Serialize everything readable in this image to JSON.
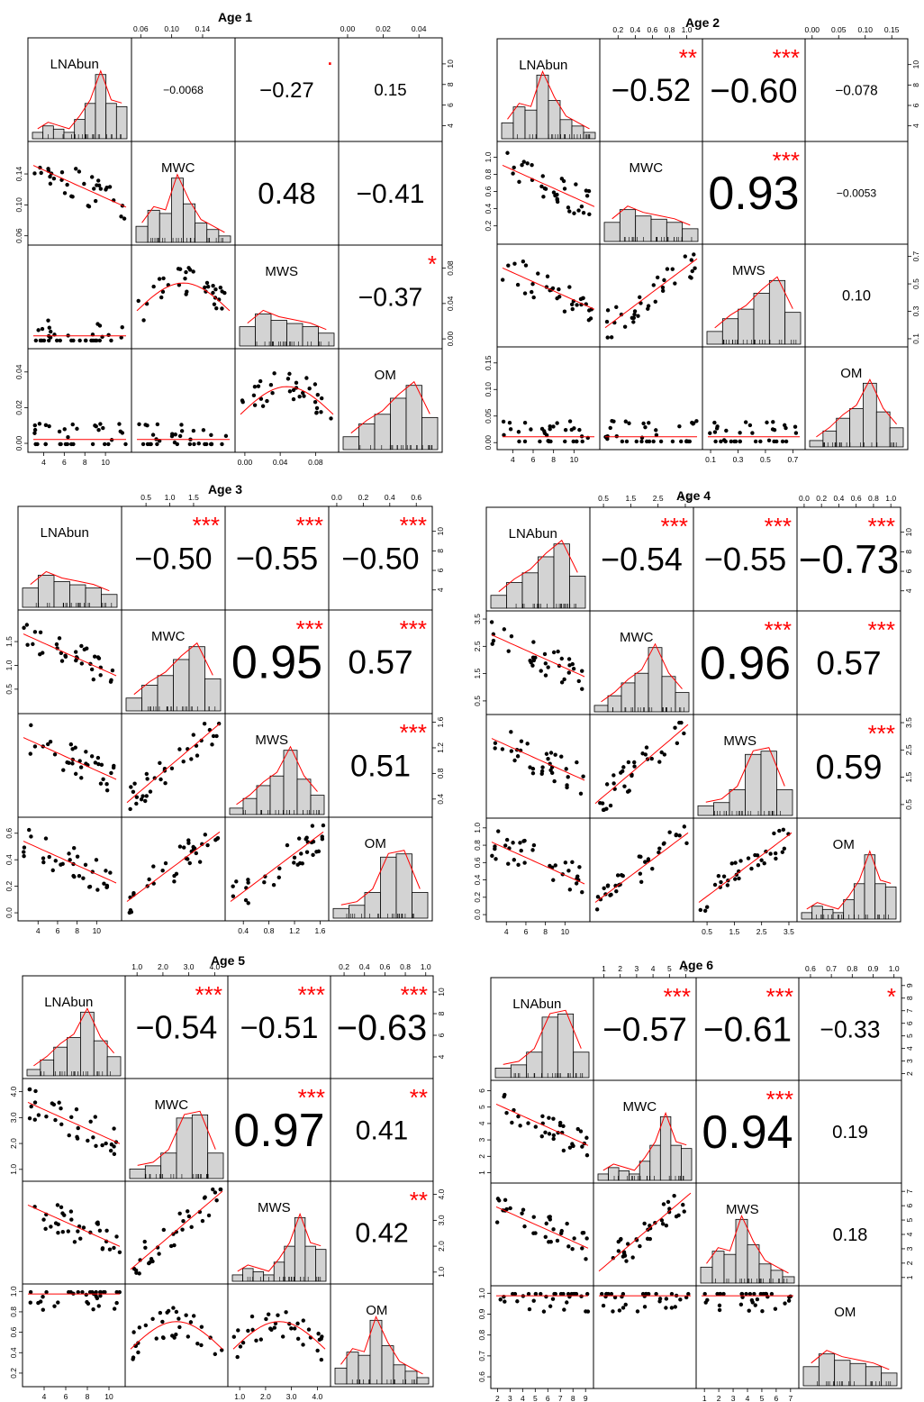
{
  "chart_data": [
    {
      "type": "scatter-matrix",
      "title": "Age 1",
      "variables": [
        "LNAbun",
        "MWC",
        "MWS",
        "OM"
      ],
      "ranges": [
        [
          3,
          12
        ],
        [
          0.055,
          0.175
        ],
        [
          -0.005,
          0.1
        ],
        [
          -0.002,
          0.05
        ]
      ],
      "ticks": [
        [
          4,
          6,
          8,
          10
        ],
        [
          0.06,
          0.1,
          0.14
        ],
        [
          0,
          0.04,
          0.08
        ],
        [
          0,
          0.02,
          0.04
        ]
      ],
      "tick_labels": [
        [
          "4",
          "6",
          "8",
          "10"
        ],
        [
          "0.06",
          "0.10",
          "0.14"
        ],
        [
          "0.00",
          "0.04",
          "0.08"
        ],
        [
          "0.00",
          "0.02",
          "0.04"
        ]
      ],
      "correlations": [
        {
          "pair": "LNAbun-MWC",
          "r": "-0.0068",
          "stars": ""
        },
        {
          "pair": "LNAbun-MWS",
          "r": "-0.27",
          "stars": "."
        },
        {
          "pair": "LNAbun-OM",
          "r": "0.15",
          "stars": ""
        },
        {
          "pair": "MWC-MWS",
          "r": "0.48",
          "stars": ""
        },
        {
          "pair": "MWC-OM",
          "r": "-0.41",
          "stars": ""
        },
        {
          "pair": "MWS-OM",
          "r": "-0.37",
          "stars": "*"
        }
      ]
    },
    {
      "type": "scatter-matrix",
      "title": "Age 2",
      "variables": [
        "LNAbun",
        "MWC",
        "MWS",
        "OM"
      ],
      "ranges": [
        [
          3,
          12
        ],
        [
          0.05,
          1.12
        ],
        [
          0.08,
          0.75
        ],
        [
          -0.003,
          0.17
        ]
      ],
      "ticks": [
        [
          4,
          6,
          8,
          10
        ],
        [
          0.2,
          0.4,
          0.6,
          0.8,
          1.0
        ],
        [
          0.1,
          0.3,
          0.5,
          0.7
        ],
        [
          0,
          0.05,
          0.1,
          0.15
        ]
      ],
      "tick_labels": [
        [
          "4",
          "6",
          "8",
          "10"
        ],
        [
          "0.2",
          "0.4",
          "0.6",
          "0.8",
          "1.0"
        ],
        [
          "0.1",
          "0.3",
          "0.5",
          "0.7"
        ],
        [
          "0.00",
          "0.05",
          "0.10",
          "0.15"
        ]
      ],
      "correlations": [
        {
          "pair": "LNAbun-MWC",
          "r": "-0.52",
          "stars": "**"
        },
        {
          "pair": "LNAbun-MWS",
          "r": "-0.60",
          "stars": "***"
        },
        {
          "pair": "LNAbun-OM",
          "r": "-0.078",
          "stars": ""
        },
        {
          "pair": "MWC-MWS",
          "r": "0.93",
          "stars": "***"
        },
        {
          "pair": "MWC-OM",
          "r": "-0.0053",
          "stars": ""
        },
        {
          "pair": "MWS-OM",
          "r": "0.10",
          "stars": ""
        }
      ]
    },
    {
      "type": "scatter-matrix",
      "title": "Age 3",
      "variables": [
        "LNAbun",
        "MWC",
        "MWS",
        "OM"
      ],
      "ranges": [
        [
          2.5,
          12
        ],
        [
          0.1,
          2.05
        ],
        [
          0.2,
          1.65
        ],
        [
          -0.02,
          0.68
        ]
      ],
      "ticks": [
        [
          4,
          6,
          8,
          10
        ],
        [
          0.5,
          1.0,
          1.5
        ],
        [
          0.4,
          0.8,
          1.2,
          1.6
        ],
        [
          0,
          0.2,
          0.4,
          0.6
        ]
      ],
      "tick_labels": [
        [
          "4",
          "6",
          "8",
          "10"
        ],
        [
          "0.5",
          "1.0",
          "1.5"
        ],
        [
          "0.4",
          "0.8",
          "1.2",
          "1.6"
        ],
        [
          "0.0",
          "0.2",
          "0.4",
          "0.6"
        ]
      ],
      "correlations": [
        {
          "pair": "LNAbun-MWC",
          "r": "-0.50",
          "stars": "***"
        },
        {
          "pair": "LNAbun-MWS",
          "r": "-0.55",
          "stars": "***"
        },
        {
          "pair": "LNAbun-OM",
          "r": "-0.50",
          "stars": "***"
        },
        {
          "pair": "MWC-MWS",
          "r": "0.95",
          "stars": "***"
        },
        {
          "pair": "MWC-OM",
          "r": "0.57",
          "stars": "***"
        },
        {
          "pair": "MWS-OM",
          "r": "0.51",
          "stars": "***"
        }
      ]
    },
    {
      "type": "scatter-matrix",
      "title": "Age 4",
      "variables": [
        "LNAbun",
        "MWC",
        "MWS",
        "OM"
      ],
      "ranges": [
        [
          2.5,
          12
        ],
        [
          0.2,
          3.6
        ],
        [
          0.2,
          3.6
        ],
        [
          -0.02,
          1.05
        ]
      ],
      "ticks": [
        [
          4,
          6,
          8,
          10
        ],
        [
          0.5,
          1.5,
          2.5,
          3.5
        ],
        [
          0.5,
          1.5,
          2.5,
          3.5
        ],
        [
          0,
          0.2,
          0.4,
          0.6,
          0.8,
          1.0
        ]
      ],
      "tick_labels": [
        [
          "4",
          "6",
          "8",
          "10"
        ],
        [
          "0.5",
          "1.5",
          "2.5",
          "3.5"
        ],
        [
          "0.5",
          "1.5",
          "2.5",
          "3.5"
        ],
        [
          "0.0",
          "0.2",
          "0.4",
          "0.6",
          "0.8",
          "1.0"
        ]
      ],
      "correlations": [
        {
          "pair": "LNAbun-MWC",
          "r": "-0.54",
          "stars": "***"
        },
        {
          "pair": "LNAbun-MWS",
          "r": "-0.55",
          "stars": "***"
        },
        {
          "pair": "LNAbun-OM",
          "r": "-0.73",
          "stars": "***"
        },
        {
          "pair": "MWC-MWS",
          "r": "0.96",
          "stars": "***"
        },
        {
          "pair": "MWC-OM",
          "r": "0.57",
          "stars": "***"
        },
        {
          "pair": "MWS-OM",
          "r": "0.59",
          "stars": "***"
        }
      ]
    },
    {
      "type": "scatter-matrix",
      "title": "Age 5",
      "variables": [
        "LNAbun",
        "MWC",
        "MWS",
        "OM"
      ],
      "ranges": [
        [
          2.5,
          11
        ],
        [
          0.75,
          4.3
        ],
        [
          0.75,
          4.3
        ],
        [
          0.12,
          1.02
        ]
      ],
      "ticks": [
        [
          4,
          6,
          8,
          10
        ],
        [
          1.0,
          2.0,
          3.0,
          4.0
        ],
        [
          1.0,
          2.0,
          3.0,
          4.0
        ],
        [
          0.2,
          0.4,
          0.6,
          0.8,
          1.0
        ]
      ],
      "tick_labels": [
        [
          "4",
          "6",
          "8",
          "10"
        ],
        [
          "1.0",
          "2.0",
          "3.0",
          "4.0"
        ],
        [
          "1.0",
          "2.0",
          "3.0",
          "4.0"
        ],
        [
          "0.2",
          "0.4",
          "0.6",
          "0.8",
          "1.0"
        ]
      ],
      "correlations": [
        {
          "pair": "LNAbun-MWC",
          "r": "-0.54",
          "stars": "***"
        },
        {
          "pair": "LNAbun-MWS",
          "r": "-0.51",
          "stars": "***"
        },
        {
          "pair": "LNAbun-OM",
          "r": "-0.63",
          "stars": "***"
        },
        {
          "pair": "MWC-MWS",
          "r": "0.97",
          "stars": "***"
        },
        {
          "pair": "MWC-OM",
          "r": "0.41",
          "stars": "**"
        },
        {
          "pair": "MWS-OM",
          "r": "0.42",
          "stars": "**"
        }
      ]
    },
    {
      "type": "scatter-matrix",
      "title": "Age 6",
      "variables": [
        "LNAbun",
        "MWC",
        "MWS",
        "OM"
      ],
      "ranges": [
        [
          1.9,
          9.2
        ],
        [
          0.7,
          6.3
        ],
        [
          0.8,
          7.2
        ],
        [
          0.57,
          1.01
        ]
      ],
      "ticks": [
        [
          2,
          3,
          4,
          5,
          6,
          7,
          8,
          9
        ],
        [
          1,
          2,
          3,
          4,
          5,
          6
        ],
        [
          1,
          2,
          3,
          4,
          5,
          6,
          7
        ],
        [
          0.6,
          0.7,
          0.8,
          0.9,
          1.0
        ]
      ],
      "tick_labels": [
        [
          "2",
          "3",
          "4",
          "5",
          "6",
          "7",
          "8",
          "9"
        ],
        [
          "1",
          "2",
          "3",
          "4",
          "5",
          "6"
        ],
        [
          "1",
          "2",
          "3",
          "4",
          "5",
          "6",
          "7"
        ],
        [
          "0.6",
          "0.7",
          "0.8",
          "0.9",
          "1.0"
        ]
      ],
      "correlations": [
        {
          "pair": "LNAbun-MWC",
          "r": "-0.57",
          "stars": "***"
        },
        {
          "pair": "LNAbun-MWS",
          "r": "-0.61",
          "stars": "***"
        },
        {
          "pair": "LNAbun-OM",
          "r": "-0.33",
          "stars": "*"
        },
        {
          "pair": "MWC-MWS",
          "r": "0.94",
          "stars": "***"
        },
        {
          "pair": "MWC-OM",
          "r": "0.19",
          "stars": ""
        },
        {
          "pair": "MWS-OM",
          "r": "0.18",
          "stars": ""
        }
      ]
    }
  ]
}
